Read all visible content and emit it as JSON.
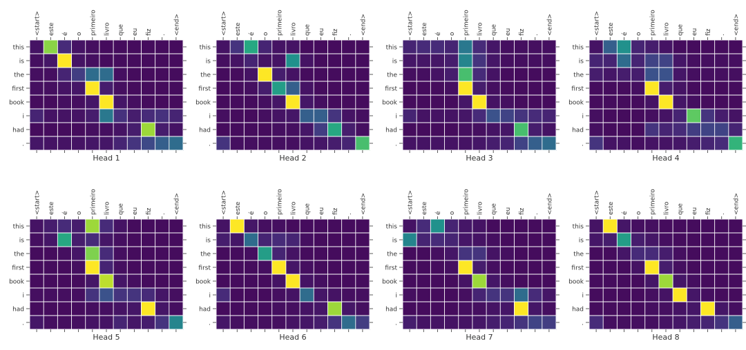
{
  "figure": {
    "background": "#ffffff",
    "grid_color": "#ffffff"
  },
  "colormap": {
    "name": "viridis",
    "stops": [
      "#440154",
      "#472d7b",
      "#3b528b",
      "#2c728e",
      "#21918c",
      "#28ae80",
      "#5ec962",
      "#addc30",
      "#fde725"
    ]
  },
  "chart_data": [
    {
      "type": "heatmap",
      "title": "Head 1",
      "x_tick_labels": [
        "<start>",
        "este",
        "é",
        "o",
        "primeiro",
        "livro",
        "que",
        "eu",
        "fiz",
        ".",
        "<end>"
      ],
      "y_tick_labels": [
        "this",
        "is",
        "the",
        "first",
        "book",
        "i",
        "had",
        "."
      ],
      "values": [
        [
          0.05,
          0.82,
          0.12,
          0.05,
          0.04,
          0.03,
          0.03,
          0.03,
          0.03,
          0.03,
          0.03
        ],
        [
          0.04,
          0.06,
          1.0,
          0.05,
          0.04,
          0.03,
          0.03,
          0.03,
          0.03,
          0.03,
          0.03
        ],
        [
          0.04,
          0.04,
          0.1,
          0.18,
          0.35,
          0.35,
          0.04,
          0.03,
          0.03,
          0.03,
          0.03
        ],
        [
          0.04,
          0.04,
          0.05,
          0.06,
          1.0,
          0.08,
          0.04,
          0.03,
          0.03,
          0.03,
          0.03
        ],
        [
          0.03,
          0.03,
          0.04,
          0.04,
          0.06,
          1.0,
          0.06,
          0.04,
          0.03,
          0.03,
          0.03
        ],
        [
          0.1,
          0.05,
          0.05,
          0.05,
          0.08,
          0.4,
          0.14,
          0.08,
          0.12,
          0.14,
          0.1
        ],
        [
          0.03,
          0.03,
          0.03,
          0.03,
          0.04,
          0.04,
          0.05,
          0.08,
          0.85,
          0.08,
          0.05
        ],
        [
          0.06,
          0.05,
          0.05,
          0.05,
          0.06,
          0.06,
          0.1,
          0.15,
          0.22,
          0.3,
          0.35
        ]
      ]
    },
    {
      "type": "heatmap",
      "title": "Head 2",
      "x_tick_labels": [
        "<start>",
        "este",
        "é",
        "o",
        "primeiro",
        "livro",
        "que",
        "eu",
        "fiz",
        ".",
        "<end>"
      ],
      "y_tick_labels": [
        "this",
        "is",
        "the",
        "first",
        "book",
        "i",
        "had",
        "."
      ],
      "values": [
        [
          0.05,
          0.15,
          0.6,
          0.1,
          0.05,
          0.05,
          0.03,
          0.03,
          0.03,
          0.03,
          0.03
        ],
        [
          0.04,
          0.05,
          0.1,
          0.05,
          0.05,
          0.5,
          0.05,
          0.03,
          0.03,
          0.03,
          0.03
        ],
        [
          0.03,
          0.03,
          0.05,
          1.0,
          0.08,
          0.05,
          0.03,
          0.03,
          0.03,
          0.03,
          0.03
        ],
        [
          0.03,
          0.03,
          0.04,
          0.08,
          0.55,
          0.3,
          0.05,
          0.03,
          0.03,
          0.03,
          0.03
        ],
        [
          0.03,
          0.03,
          0.03,
          0.04,
          0.06,
          1.0,
          0.06,
          0.04,
          0.03,
          0.03,
          0.03
        ],
        [
          0.04,
          0.03,
          0.03,
          0.04,
          0.05,
          0.06,
          0.3,
          0.3,
          0.15,
          0.05,
          0.04
        ],
        [
          0.03,
          0.03,
          0.03,
          0.03,
          0.04,
          0.04,
          0.06,
          0.18,
          0.6,
          0.08,
          0.04
        ],
        [
          0.15,
          0.04,
          0.04,
          0.04,
          0.04,
          0.04,
          0.05,
          0.06,
          0.08,
          0.1,
          0.7
        ]
      ]
    },
    {
      "type": "heatmap",
      "title": "Head 3",
      "x_tick_labels": [
        "<start>",
        "este",
        "é",
        "o",
        "primeiro",
        "livro",
        "que",
        "eu",
        "fiz",
        ".",
        "<end>"
      ],
      "y_tick_labels": [
        "this",
        "is",
        "the",
        "first",
        "book",
        "i",
        "had",
        "."
      ],
      "values": [
        [
          0.1,
          0.12,
          0.12,
          0.1,
          0.4,
          0.12,
          0.06,
          0.04,
          0.04,
          0.04,
          0.04
        ],
        [
          0.06,
          0.06,
          0.06,
          0.08,
          0.45,
          0.15,
          0.06,
          0.04,
          0.04,
          0.04,
          0.04
        ],
        [
          0.04,
          0.04,
          0.05,
          0.08,
          0.7,
          0.12,
          0.05,
          0.03,
          0.03,
          0.03,
          0.03
        ],
        [
          0.03,
          0.03,
          0.03,
          0.04,
          1.0,
          0.08,
          0.04,
          0.03,
          0.03,
          0.03,
          0.03
        ],
        [
          0.03,
          0.03,
          0.03,
          0.03,
          0.06,
          1.0,
          0.05,
          0.04,
          0.03,
          0.03,
          0.03
        ],
        [
          0.1,
          0.05,
          0.05,
          0.05,
          0.06,
          0.12,
          0.25,
          0.2,
          0.15,
          0.12,
          0.1
        ],
        [
          0.03,
          0.03,
          0.03,
          0.03,
          0.04,
          0.04,
          0.05,
          0.06,
          0.7,
          0.08,
          0.05
        ],
        [
          0.05,
          0.05,
          0.05,
          0.05,
          0.05,
          0.06,
          0.08,
          0.1,
          0.2,
          0.3,
          0.35
        ]
      ]
    },
    {
      "type": "heatmap",
      "title": "Head 4",
      "x_tick_labels": [
        "<start>",
        "este",
        "é",
        "o",
        "primeiro",
        "livro",
        "que",
        "eu",
        "fiz",
        ".",
        "<end>"
      ],
      "y_tick_labels": [
        "this",
        "is",
        "the",
        "first",
        "book",
        "i",
        "had",
        "."
      ],
      "values": [
        [
          0.05,
          0.3,
          0.5,
          0.1,
          0.08,
          0.05,
          0.03,
          0.03,
          0.03,
          0.03,
          0.03
        ],
        [
          0.1,
          0.1,
          0.35,
          0.1,
          0.2,
          0.2,
          0.06,
          0.04,
          0.04,
          0.04,
          0.04
        ],
        [
          0.08,
          0.06,
          0.08,
          0.08,
          0.25,
          0.25,
          0.06,
          0.04,
          0.04,
          0.04,
          0.04
        ],
        [
          0.03,
          0.03,
          0.03,
          0.04,
          1.0,
          0.08,
          0.05,
          0.03,
          0.03,
          0.03,
          0.03
        ],
        [
          0.03,
          0.03,
          0.03,
          0.03,
          0.05,
          1.0,
          0.06,
          0.04,
          0.03,
          0.03,
          0.03
        ],
        [
          0.04,
          0.03,
          0.03,
          0.03,
          0.04,
          0.05,
          0.1,
          0.75,
          0.15,
          0.08,
          0.05
        ],
        [
          0.04,
          0.03,
          0.03,
          0.03,
          0.15,
          0.1,
          0.12,
          0.18,
          0.2,
          0.2,
          0.1
        ],
        [
          0.15,
          0.05,
          0.05,
          0.04,
          0.05,
          0.05,
          0.06,
          0.08,
          0.1,
          0.12,
          0.65
        ]
      ]
    },
    {
      "type": "heatmap",
      "title": "Head 5",
      "x_tick_labels": [
        "<start>",
        "este",
        "é",
        "o",
        "primeiro",
        "livro",
        "que",
        "eu",
        "fiz",
        ".",
        "<end>"
      ],
      "y_tick_labels": [
        "this",
        "is",
        "the",
        "first",
        "book",
        "i",
        "had",
        "."
      ],
      "values": [
        [
          0.05,
          0.08,
          0.12,
          0.08,
          0.85,
          0.12,
          0.05,
          0.03,
          0.03,
          0.03,
          0.03
        ],
        [
          0.04,
          0.06,
          0.6,
          0.08,
          0.12,
          0.06,
          0.04,
          0.03,
          0.03,
          0.03,
          0.03
        ],
        [
          0.03,
          0.03,
          0.04,
          0.06,
          0.8,
          0.12,
          0.04,
          0.03,
          0.03,
          0.03,
          0.03
        ],
        [
          0.03,
          0.03,
          0.03,
          0.04,
          1.0,
          0.1,
          0.04,
          0.03,
          0.03,
          0.03,
          0.03
        ],
        [
          0.03,
          0.03,
          0.03,
          0.03,
          0.06,
          0.9,
          0.06,
          0.04,
          0.03,
          0.03,
          0.03
        ],
        [
          0.04,
          0.04,
          0.04,
          0.04,
          0.15,
          0.25,
          0.15,
          0.15,
          0.12,
          0.06,
          0.04
        ],
        [
          0.03,
          0.03,
          0.03,
          0.03,
          0.04,
          0.04,
          0.05,
          0.06,
          1.0,
          0.06,
          0.04
        ],
        [
          0.06,
          0.04,
          0.04,
          0.04,
          0.05,
          0.05,
          0.1,
          0.06,
          0.08,
          0.15,
          0.45
        ]
      ]
    },
    {
      "type": "heatmap",
      "title": "Head 6",
      "x_tick_labels": [
        "<start>",
        "este",
        "é",
        "o",
        "primeiro",
        "livro",
        "que",
        "eu",
        "fiz",
        ".",
        "<end>"
      ],
      "y_tick_labels": [
        "this",
        "is",
        "the",
        "first",
        "book",
        "i",
        "had",
        "."
      ],
      "values": [
        [
          0.05,
          1.0,
          0.06,
          0.04,
          0.04,
          0.03,
          0.03,
          0.03,
          0.03,
          0.03,
          0.03
        ],
        [
          0.08,
          0.06,
          0.35,
          0.1,
          0.12,
          0.1,
          0.04,
          0.03,
          0.03,
          0.03,
          0.03
        ],
        [
          0.03,
          0.03,
          0.04,
          0.55,
          0.1,
          0.05,
          0.03,
          0.03,
          0.03,
          0.03,
          0.03
        ],
        [
          0.03,
          0.03,
          0.03,
          0.04,
          1.0,
          0.06,
          0.04,
          0.03,
          0.03,
          0.03,
          0.03
        ],
        [
          0.03,
          0.03,
          0.03,
          0.03,
          0.05,
          1.0,
          0.05,
          0.04,
          0.03,
          0.03,
          0.03
        ],
        [
          0.12,
          0.03,
          0.03,
          0.03,
          0.04,
          0.05,
          0.35,
          0.06,
          0.05,
          0.04,
          0.04
        ],
        [
          0.03,
          0.03,
          0.03,
          0.03,
          0.04,
          0.04,
          0.05,
          0.06,
          0.85,
          0.06,
          0.04
        ],
        [
          0.06,
          0.04,
          0.04,
          0.04,
          0.04,
          0.05,
          0.06,
          0.08,
          0.15,
          0.35,
          0.18
        ]
      ]
    },
    {
      "type": "heatmap",
      "title": "Head 7",
      "x_tick_labels": [
        "<start>",
        "este",
        "é",
        "o",
        "primeiro",
        "livro",
        "que",
        "eu",
        "fiz",
        ".",
        "<end>"
      ],
      "y_tick_labels": [
        "this",
        "is",
        "the",
        "first",
        "book",
        "i",
        "had",
        "."
      ],
      "values": [
        [
          0.05,
          0.12,
          0.5,
          0.1,
          0.06,
          0.05,
          0.03,
          0.03,
          0.03,
          0.03,
          0.03
        ],
        [
          0.45,
          0.1,
          0.12,
          0.1,
          0.06,
          0.05,
          0.04,
          0.03,
          0.03,
          0.03,
          0.03
        ],
        [
          0.03,
          0.03,
          0.04,
          0.06,
          0.15,
          0.15,
          0.05,
          0.04,
          0.03,
          0.03,
          0.03
        ],
        [
          0.03,
          0.03,
          0.03,
          0.04,
          1.0,
          0.08,
          0.04,
          0.03,
          0.03,
          0.03,
          0.03
        ],
        [
          0.03,
          0.03,
          0.03,
          0.03,
          0.05,
          0.85,
          0.06,
          0.04,
          0.03,
          0.03,
          0.03
        ],
        [
          0.04,
          0.03,
          0.03,
          0.03,
          0.04,
          0.1,
          0.15,
          0.15,
          0.35,
          0.12,
          0.06
        ],
        [
          0.03,
          0.03,
          0.03,
          0.03,
          0.04,
          0.04,
          0.05,
          0.06,
          1.0,
          0.06,
          0.04
        ],
        [
          0.08,
          0.05,
          0.05,
          0.05,
          0.05,
          0.06,
          0.08,
          0.1,
          0.15,
          0.2,
          0.18
        ]
      ]
    },
    {
      "type": "heatmap",
      "title": "Head 8",
      "x_tick_labels": [
        "<start>",
        "este",
        "é",
        "o",
        "primeiro",
        "livro",
        "que",
        "eu",
        "fiz",
        ".",
        "<end>"
      ],
      "y_tick_labels": [
        "this",
        "is",
        "the",
        "first",
        "book",
        "i",
        "had",
        "."
      ],
      "values": [
        [
          0.05,
          1.0,
          0.06,
          0.04,
          0.04,
          0.03,
          0.03,
          0.03,
          0.03,
          0.03,
          0.03
        ],
        [
          0.06,
          0.08,
          0.55,
          0.08,
          0.06,
          0.04,
          0.03,
          0.03,
          0.03,
          0.03,
          0.03
        ],
        [
          0.03,
          0.03,
          0.06,
          0.12,
          0.12,
          0.08,
          0.04,
          0.03,
          0.03,
          0.03,
          0.03
        ],
        [
          0.03,
          0.03,
          0.03,
          0.05,
          1.0,
          0.08,
          0.04,
          0.03,
          0.03,
          0.03,
          0.03
        ],
        [
          0.03,
          0.03,
          0.03,
          0.03,
          0.06,
          0.85,
          0.06,
          0.04,
          0.03,
          0.03,
          0.03
        ],
        [
          0.03,
          0.03,
          0.03,
          0.03,
          0.04,
          0.05,
          1.0,
          0.06,
          0.04,
          0.03,
          0.03
        ],
        [
          0.03,
          0.03,
          0.03,
          0.03,
          0.04,
          0.04,
          0.05,
          0.06,
          1.0,
          0.06,
          0.04
        ],
        [
          0.12,
          0.04,
          0.04,
          0.04,
          0.04,
          0.05,
          0.06,
          0.08,
          0.1,
          0.15,
          0.3
        ]
      ]
    }
  ]
}
